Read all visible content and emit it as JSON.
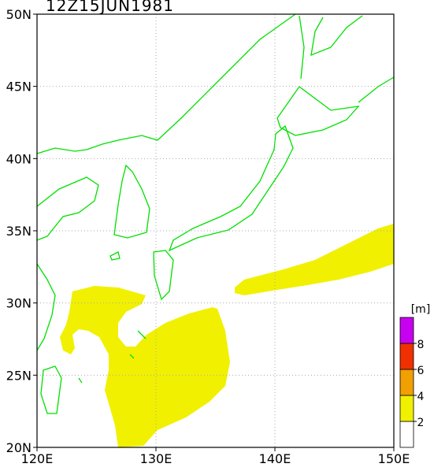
{
  "title": "12Z15JUN1981",
  "lon_ticks": [
    {
      "value": 120,
      "label": "120E"
    },
    {
      "value": 130,
      "label": "130E"
    },
    {
      "value": 140,
      "label": "140E"
    },
    {
      "value": 150,
      "label": "150E"
    }
  ],
  "lat_ticks": [
    {
      "value": 20,
      "label": "20N"
    },
    {
      "value": 25,
      "label": "25N"
    },
    {
      "value": 30,
      "label": "30N"
    },
    {
      "value": 35,
      "label": "35N"
    },
    {
      "value": 40,
      "label": "40N"
    },
    {
      "value": 45,
      "label": "45N"
    },
    {
      "value": 50,
      "label": "50N"
    }
  ],
  "colorbar": {
    "unit": "[m]",
    "levels": [
      2,
      4,
      6,
      8
    ],
    "colors": [
      "#ffffff",
      "#f0f000",
      "#f0a000",
      "#f03000",
      "#c800f0"
    ]
  }
}
